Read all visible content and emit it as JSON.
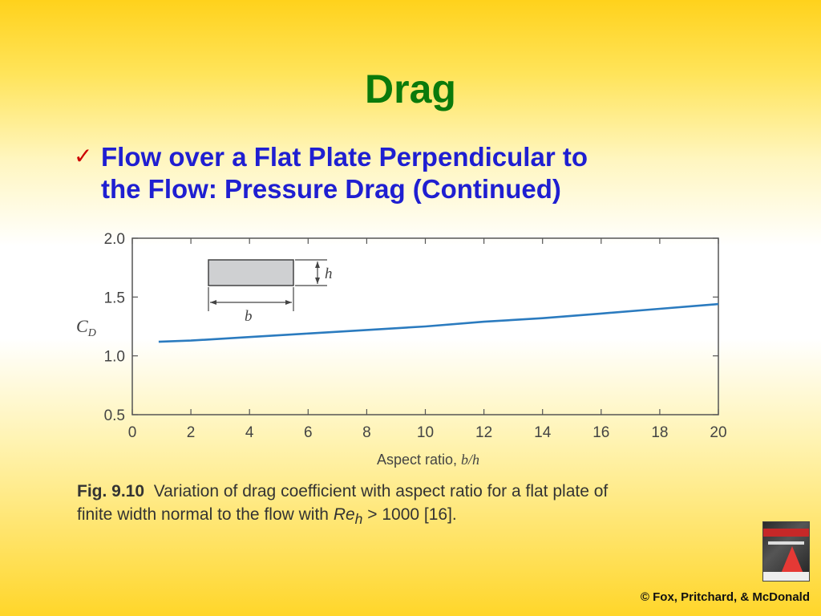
{
  "slide": {
    "title": "Drag",
    "bullet_line1": "Flow over a Flat Plate Perpendicular to",
    "bullet_line2": "the Flow: Pressure Drag (Continued)",
    "check_icon": "checkmark-icon",
    "copyright": "© Fox, Pritchard, & McDonald"
  },
  "caption": {
    "fig_label": "Fig. 9.10",
    "text1": "Variation of drag coefficient with aspect ratio for a flat plate of",
    "text2": "finite width normal to the flow with ",
    "re_symbol": "Re",
    "re_subscript": "h",
    "text3": " > 1000 [16]."
  },
  "chart_data": {
    "type": "line",
    "xlabel_text": "Aspect ratio, ",
    "xlabel_var": "b/h",
    "ylabel_main": "C",
    "ylabel_sub": "D",
    "xlim": [
      0,
      20
    ],
    "ylim": [
      0.5,
      2.0
    ],
    "x_ticks": [
      "0",
      "2",
      "4",
      "6",
      "8",
      "10",
      "12",
      "14",
      "16",
      "18",
      "20"
    ],
    "y_ticks": [
      "0.5",
      "1.0",
      "1.5",
      "2.0"
    ],
    "inset_labels": {
      "width": "b",
      "height": "h"
    },
    "series": [
      {
        "x": [
          0.9,
          2,
          4,
          6,
          8,
          10,
          12,
          14,
          16,
          18,
          20
        ],
        "values": [
          1.12,
          1.13,
          1.16,
          1.19,
          1.22,
          1.25,
          1.29,
          1.32,
          1.36,
          1.4,
          1.44
        ]
      }
    ],
    "colors": {
      "curve": "#2b7bbf",
      "axis": "#555555",
      "text": "#444444"
    },
    "grid": false
  }
}
